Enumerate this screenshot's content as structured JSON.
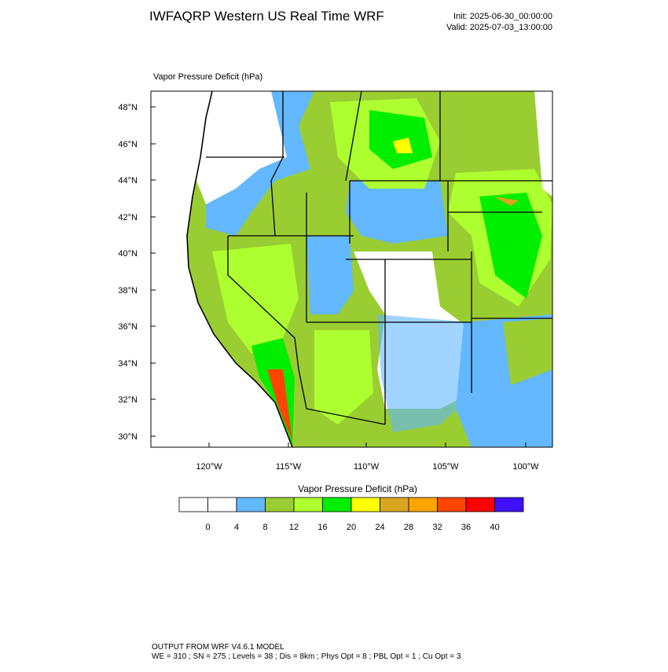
{
  "header": {
    "title": "IWFAQRP Western US Real Time WRF",
    "init": "Init: 2025-06-30_00:00:00",
    "valid": "Valid: 2025-07-03_13:00:00"
  },
  "map": {
    "field_label": "Vapor Pressure Deficit   (hPa)",
    "lat_labels": [
      "48°N",
      "46°N",
      "44°N",
      "42°N",
      "40°N",
      "38°N",
      "36°N",
      "34°N",
      "32°N",
      "30°N"
    ],
    "lon_labels": [
      "120°W",
      "115°W",
      "110°W",
      "105°W",
      "100°W"
    ]
  },
  "colorbar": {
    "title": "Vapor Pressure Deficit  (hPa)",
    "colors": [
      "#ffffff",
      "#ffffff",
      "#63b8ff",
      "#9acd32",
      "#adff2f",
      "#00ee00",
      "#ffff00",
      "#daa520",
      "#ffa500",
      "#ff4500",
      "#ff0000",
      "#4010ff"
    ],
    "levels": [
      0,
      4,
      8,
      12,
      16,
      20,
      24,
      28,
      32,
      36,
      40
    ]
  },
  "footer": {
    "line1": "OUTPUT FROM WRF V4.6.1 MODEL",
    "line2": "WE = 310 ; SN = 275 ; Levels = 38 ; Dis = 8km ; Phys Opt = 8 ; PBL Opt = 1 ; Cu Opt = 3"
  }
}
